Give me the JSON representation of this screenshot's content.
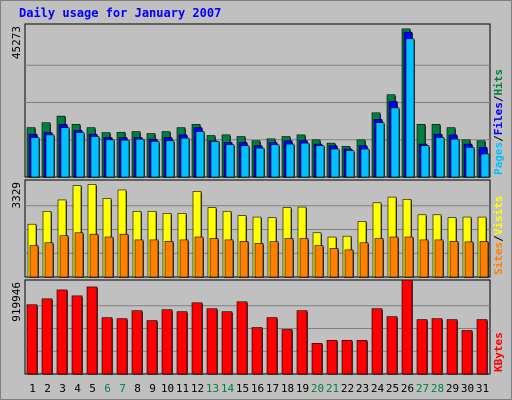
{
  "chart_data": {
    "type": "bar",
    "title": "Daily usage for January 2007",
    "days": [
      "1",
      "2",
      "3",
      "4",
      "5",
      "6",
      "7",
      "8",
      "9",
      "10",
      "11",
      "12",
      "13",
      "14",
      "15",
      "16",
      "17",
      "18",
      "19",
      "20",
      "21",
      "22",
      "23",
      "24",
      "25",
      "26",
      "27",
      "28",
      "29",
      "30",
      "31"
    ],
    "weekend_days": [
      "6",
      "7",
      "13",
      "14",
      "20",
      "21",
      "27",
      "28"
    ],
    "panels": [
      {
        "id": "hits_files_pages",
        "max_label": "45273",
        "max": 45273,
        "legend": [
          {
            "name": "Pages",
            "color": "#00c0ff"
          },
          {
            "name": "Files",
            "color": "#0000ff"
          },
          {
            "name": "Hits",
            "color": "#008040"
          }
        ],
        "legend_sep": "/",
        "series": [
          {
            "name": "Hits",
            "color": "#008040",
            "values": [
              15000,
              16500,
              18500,
              16000,
              15000,
              13500,
              13600,
              13800,
              13200,
              13800,
              15000,
              16000,
              12600,
              12800,
              12300,
              11000,
              11600,
              12300,
              12800,
              11300,
              10300,
              9300,
              11300,
              19500,
              25000,
              45000,
              16000,
              16000,
              15000,
              11300,
              11000
            ]
          },
          {
            "name": "Files",
            "color": "#0000ff",
            "values": [
              13000,
              13500,
              16000,
              14200,
              13000,
              12000,
              12000,
              12000,
              11500,
              12000,
              12800,
              15000,
              11000,
              10500,
              10500,
              9500,
              10500,
              11000,
              11200,
              10000,
              9500,
              8500,
              9500,
              17500,
              23000,
              44000,
              10000,
              13000,
              12800,
              10000,
              9000
            ]
          },
          {
            "name": "Pages",
            "color": "#00c0ff",
            "values": [
              12000,
              12800,
              15000,
              13500,
              12300,
              11300,
              11200,
              11500,
              10800,
              11000,
              11800,
              13800,
              10800,
              9800,
              9500,
              8800,
              9800,
              10000,
              10300,
              9500,
              8500,
              8000,
              8500,
              16500,
              21000,
              42000,
              9500,
              12000,
              11500,
              9000,
              7000
            ]
          }
        ]
      },
      {
        "id": "visits_sites",
        "max_label": "3329",
        "max": 3329,
        "legend": [
          {
            "name": "Sites",
            "color": "#ff8000"
          },
          {
            "name": "Visits",
            "color": "#ffff00"
          }
        ],
        "legend_sep": "/",
        "series": [
          {
            "name": "Visits",
            "color": "#ffff00",
            "values": [
              1850,
              2300,
              2700,
              3200,
              3240,
              2750,
              3050,
              2300,
              2300,
              2230,
              2230,
              3000,
              2430,
              2300,
              2150,
              2100,
              2080,
              2430,
              2450,
              1550,
              1400,
              1430,
              1950,
              2600,
              2800,
              2720,
              2180,
              2180,
              2080,
              2100,
              2100
            ]
          },
          {
            "name": "Sites",
            "color": "#ff8000",
            "values": [
              1100,
              1200,
              1450,
              1550,
              1500,
              1400,
              1500,
              1300,
              1300,
              1250,
              1300,
              1400,
              1350,
              1300,
              1250,
              1180,
              1240,
              1350,
              1350,
              1100,
              1000,
              950,
              1200,
              1350,
              1400,
              1400,
              1300,
              1300,
              1250,
              1230,
              1250
            ]
          }
        ]
      },
      {
        "id": "kbytes",
        "max_label": "919946",
        "max": 919946,
        "legend": [
          {
            "name": "KBytes",
            "color": "#ff0000"
          }
        ],
        "legend_sep": "",
        "series": [
          {
            "name": "KBytes",
            "color": "#ff0000",
            "values": [
              700000,
              760000,
              850000,
              790000,
              880000,
              570000,
              560000,
              640000,
              540000,
              650000,
              630000,
              720000,
              660000,
              630000,
              730000,
              470000,
              570000,
              450000,
              640000,
              310000,
              340000,
              340000,
              340000,
              660000,
              580000,
              950000,
              550000,
              560000,
              550000,
              440000,
              550000
            ]
          }
        ]
      }
    ]
  }
}
